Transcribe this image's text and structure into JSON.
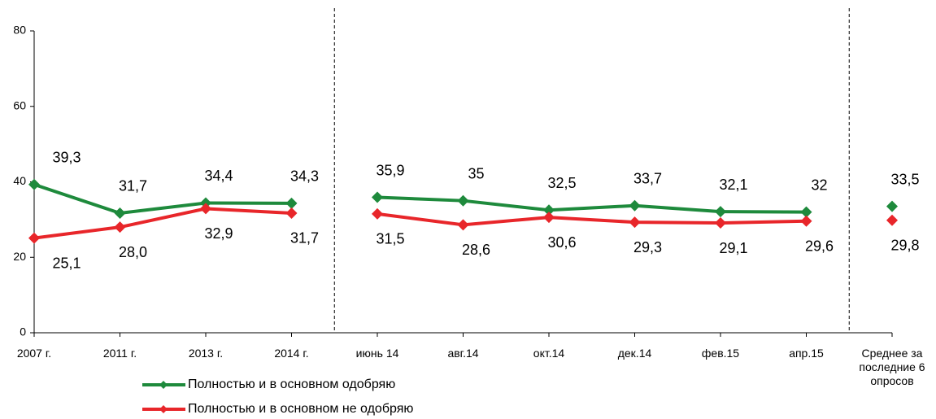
{
  "chart_data": {
    "type": "line",
    "categories": [
      "2007 г.",
      "2011 г.",
      "2013 г.",
      "2014 г.",
      "июнь 14",
      "авг.14",
      "окт.14",
      "дек.14",
      "фев.15",
      "апр.15",
      "Среднее за последние 6 опросов"
    ],
    "series": [
      {
        "name": "Полностью и в основном одобряю",
        "color": "#1e8a3c",
        "values": [
          39.3,
          31.7,
          34.4,
          34.3,
          35.9,
          35,
          32.5,
          33.7,
          32.1,
          32,
          33.5
        ],
        "value_labels": [
          "39,3",
          "31,7",
          "34,4",
          "34,3",
          "35,9",
          "35",
          "32,5",
          "33,7",
          "32,1",
          "32",
          "33,5"
        ]
      },
      {
        "name": "Полностью и в основном не одобряю",
        "color": "#e8262a",
        "values": [
          25.1,
          28.0,
          32.9,
          31.7,
          31.5,
          28.6,
          30.6,
          29.3,
          29.1,
          29.6,
          29.8
        ],
        "value_labels": [
          "25,1",
          "28,0",
          "32,9",
          "31,7",
          "31,5",
          "28,6",
          "30,6",
          "29,3",
          "29,1",
          "29,6",
          "29,8"
        ]
      }
    ],
    "ylim": [
      0,
      80
    ],
    "yticks": [
      0,
      20,
      40,
      60,
      80
    ],
    "grid": false
  }
}
